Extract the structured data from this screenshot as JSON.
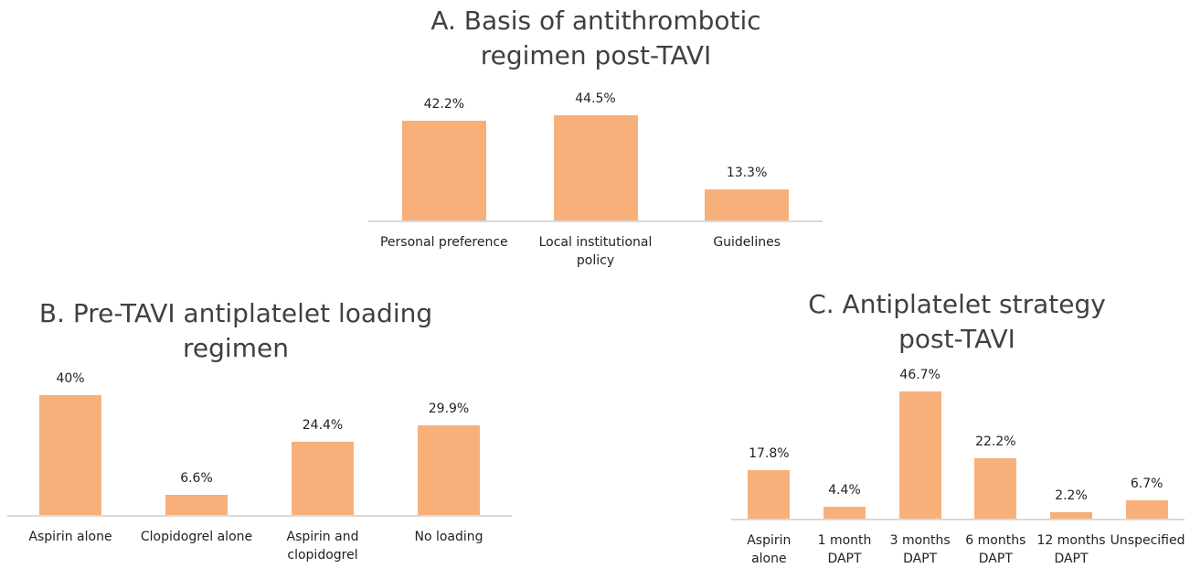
{
  "chart_data": [
    {
      "type": "bar",
      "title": "A. Basis of antithrombotic regimen post-TAVI",
      "categories": [
        "Personal preference",
        "Local institutional policy",
        "Guidelines"
      ],
      "values": [
        42.2,
        44.5,
        13.3
      ],
      "value_labels": [
        "42.2%",
        "44.5%",
        "13.3%"
      ],
      "color": "#f8b07b"
    },
    {
      "type": "bar",
      "title": "B. Pre-TAVI antiplatelet loading regimen",
      "categories": [
        "Aspirin alone",
        "Clopidogrel alone",
        "Aspirin and clopidogrel",
        "No loading"
      ],
      "values": [
        40,
        6.6,
        24.4,
        29.9
      ],
      "value_labels": [
        "40%",
        "6.6%",
        "24.4%",
        "29.9%"
      ],
      "color": "#f8b07b"
    },
    {
      "type": "bar",
      "title": "C. Antiplatelet strategy post-TAVI",
      "categories": [
        "Aspirin alone",
        "1 month DAPT",
        "3 months DAPT",
        "6 months DAPT",
        "12 months DAPT",
        "Unspecified"
      ],
      "values": [
        17.8,
        4.4,
        46.7,
        22.2,
        2.2,
        6.7
      ],
      "value_labels": [
        "17.8%",
        "4.4%",
        "46.7%",
        "22.2%",
        "2.2%",
        "6.7%"
      ],
      "color": "#f8b07b"
    }
  ]
}
